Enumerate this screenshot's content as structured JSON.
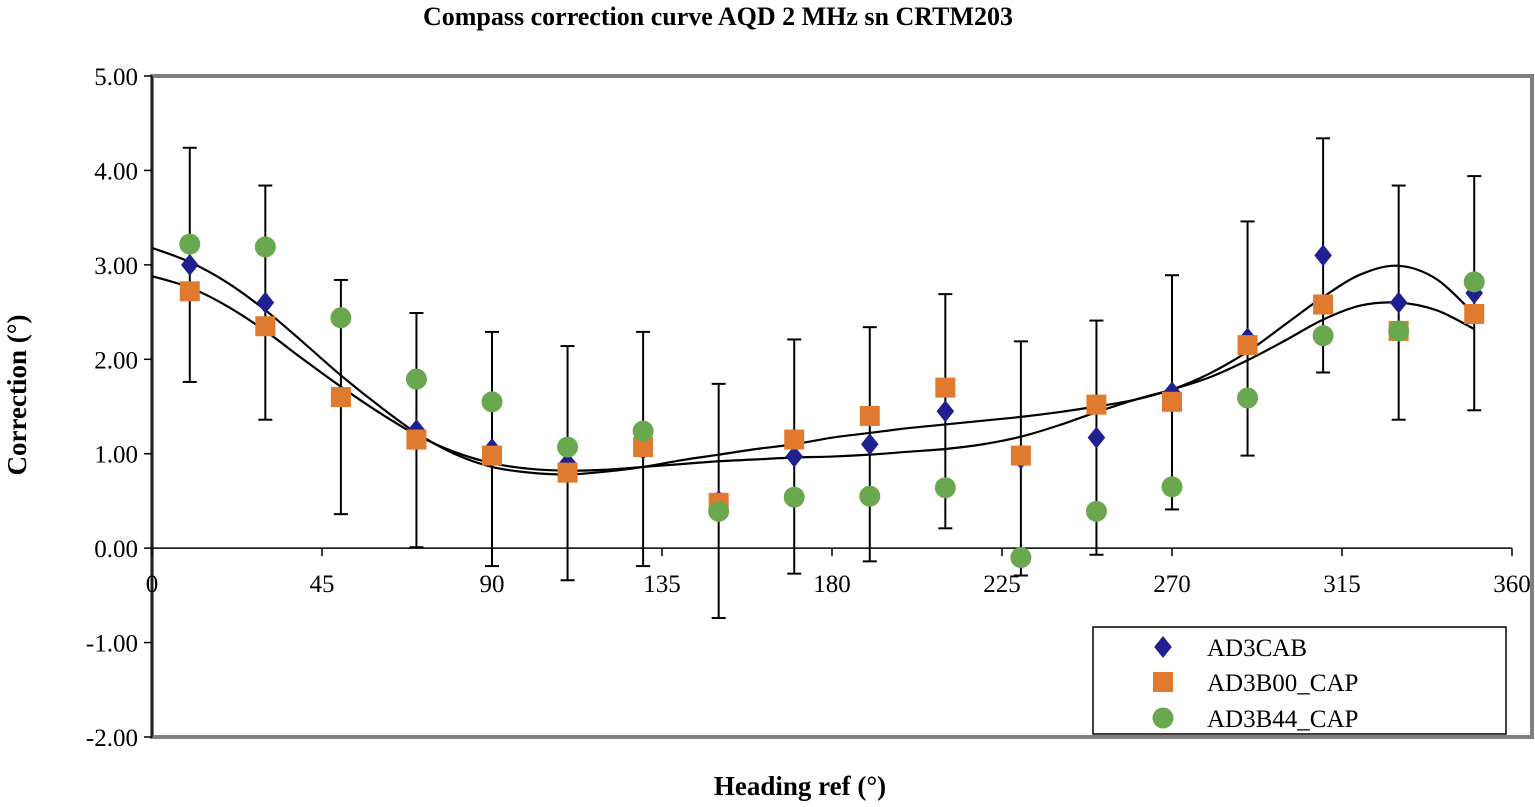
{
  "chart_data": {
    "type": "scatter",
    "title": "Compass correction curve AQD 2 MHz sn CRTM203",
    "xlabel": "Heading ref (°)",
    "ylabel": "Correction (°)",
    "xlim": [
      0,
      360
    ],
    "ylim": [
      -2,
      5
    ],
    "xticks": [
      "0",
      "45",
      "90",
      "135",
      "180",
      "225",
      "270",
      "315",
      "360"
    ],
    "yticks": [
      "-2.00",
      "-1.00",
      "0.00",
      "1.00",
      "2.00",
      "3.00",
      "4.00",
      "5.00"
    ],
    "legend_position": "bottom-right",
    "series": [
      {
        "name": "AD3CAB",
        "marker": "diamond",
        "color": "#1f1f8f",
        "x": [
          10,
          30,
          50,
          70,
          90,
          110,
          130,
          150,
          170,
          190,
          210,
          230,
          250,
          270,
          290,
          310,
          330,
          350
        ],
        "y": [
          3.0,
          2.6,
          1.6,
          1.25,
          1.05,
          0.9,
          1.05,
          0.5,
          0.97,
          1.1,
          1.45,
          0.95,
          1.17,
          1.65,
          2.22,
          3.1,
          2.6,
          2.7
        ],
        "error": [
          1.24,
          1.24,
          1.24,
          1.24,
          1.24,
          1.24,
          1.24,
          1.24,
          1.24,
          1.24,
          1.24,
          1.24,
          1.24,
          1.24,
          1.24,
          1.24,
          1.24,
          1.24
        ]
      },
      {
        "name": "AD3B00_CAP",
        "marker": "square",
        "color": "#e07a2e",
        "x": [
          10,
          30,
          50,
          70,
          90,
          110,
          130,
          150,
          170,
          190,
          210,
          230,
          250,
          270,
          290,
          310,
          330,
          350
        ],
        "y": [
          2.72,
          2.35,
          1.6,
          1.15,
          0.98,
          0.8,
          1.07,
          0.48,
          1.15,
          1.4,
          1.7,
          0.98,
          1.52,
          1.55,
          2.15,
          2.58,
          2.3,
          2.48
        ]
      },
      {
        "name": "AD3B44_CAP",
        "marker": "circle",
        "color": "#6aa84f",
        "x": [
          10,
          30,
          50,
          70,
          90,
          110,
          130,
          150,
          170,
          190,
          210,
          230,
          250,
          270,
          290,
          310,
          330,
          350
        ],
        "y": [
          3.22,
          3.19,
          2.44,
          1.79,
          1.55,
          1.07,
          1.24,
          0.39,
          0.54,
          0.55,
          0.64,
          -0.1,
          0.39,
          0.65,
          1.59,
          2.25,
          2.3,
          2.82
        ]
      }
    ],
    "trendlines": [
      {
        "name": "fit-upper",
        "x": [
          0,
          10,
          20,
          30,
          40,
          50,
          60,
          70,
          80,
          90,
          100,
          110,
          120,
          130,
          140,
          150,
          160,
          170,
          180,
          190,
          200,
          210,
          220,
          230,
          240,
          250,
          260,
          270,
          280,
          290,
          300,
          310,
          320,
          330,
          340,
          350
        ],
        "y": [
          3.18,
          3.03,
          2.81,
          2.52,
          2.18,
          1.83,
          1.51,
          1.22,
          1.0,
          0.86,
          0.8,
          0.78,
          0.81,
          0.86,
          0.93,
          0.99,
          1.05,
          1.1,
          1.17,
          1.22,
          1.27,
          1.31,
          1.35,
          1.39,
          1.44,
          1.5,
          1.57,
          1.68,
          1.85,
          2.08,
          2.37,
          2.66,
          2.9,
          2.99,
          2.85,
          2.48
        ]
      },
      {
        "name": "fit-lower",
        "x": [
          0,
          10,
          20,
          30,
          40,
          50,
          60,
          70,
          80,
          90,
          100,
          110,
          120,
          130,
          140,
          150,
          160,
          170,
          180,
          190,
          200,
          210,
          220,
          230,
          240,
          250,
          260,
          270,
          280,
          290,
          300,
          310,
          320,
          330,
          340,
          350
        ],
        "y": [
          2.88,
          2.76,
          2.56,
          2.3,
          2.0,
          1.71,
          1.44,
          1.2,
          1.02,
          0.9,
          0.84,
          0.82,
          0.83,
          0.86,
          0.89,
          0.92,
          0.94,
          0.96,
          0.97,
          0.99,
          1.02,
          1.05,
          1.1,
          1.18,
          1.3,
          1.44,
          1.57,
          1.68,
          1.81,
          1.99,
          2.2,
          2.42,
          2.57,
          2.6,
          2.52,
          2.32
        ]
      }
    ]
  }
}
